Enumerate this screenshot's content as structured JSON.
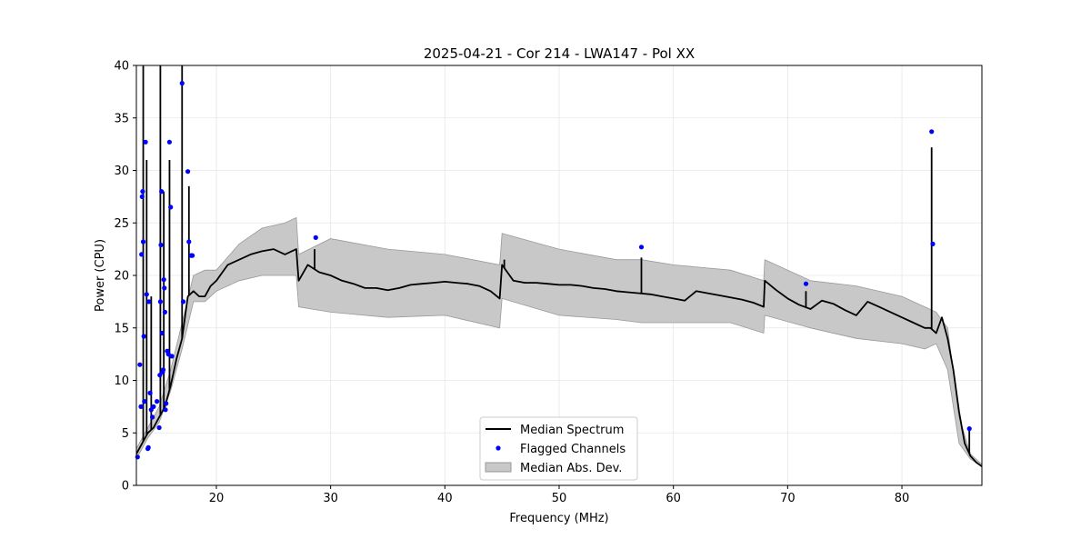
{
  "chart_data": {
    "type": "line",
    "title": "2025-04-21 - Cor 214 - LWA147 - Pol XX",
    "xlabel": "Frequency (MHz)",
    "ylabel": "Power (CPU)",
    "xlim": [
      13,
      87
    ],
    "ylim": [
      0,
      40
    ],
    "xticks": [
      20,
      30,
      40,
      50,
      60,
      70,
      80
    ],
    "yticks": [
      0,
      5,
      10,
      15,
      20,
      25,
      30,
      35,
      40
    ],
    "grid": true,
    "legend_position": "bottom-center",
    "legend": {
      "median": "Median Spectrum",
      "flagged": "Flagged Channels",
      "mad": "Median Abs. Dev."
    },
    "colors": {
      "median": "#000000",
      "flagged": "#0000ff",
      "mad_fill": "#c8c8c8",
      "mad_edge": "#999999",
      "grid": "#e6e6e6"
    },
    "median_spectrum": {
      "x": [
        13.0,
        13.5,
        14.0,
        14.5,
        15.0,
        15.5,
        16.0,
        16.5,
        17.0,
        17.5,
        18.0,
        18.5,
        19.0,
        19.5,
        20.0,
        21.0,
        22.0,
        23.0,
        24.0,
        25.0,
        26.0,
        27.0,
        27.2,
        28.0,
        29.0,
        30.0,
        31.0,
        32.0,
        33.0,
        34.0,
        35.0,
        36.0,
        37.0,
        38.0,
        39.0,
        40.0,
        41.0,
        42.0,
        43.0,
        44.0,
        44.8,
        45.0,
        46.0,
        47.0,
        48.0,
        49.0,
        50.0,
        51.0,
        52.0,
        53.0,
        54.0,
        55.0,
        56.0,
        57.0,
        58.0,
        59.0,
        60.0,
        61.0,
        62.0,
        63.0,
        64.0,
        65.0,
        66.0,
        67.0,
        67.9,
        68.0,
        69.0,
        70.0,
        71.0,
        72.0,
        73.0,
        74.0,
        75.0,
        76.0,
        77.0,
        78.0,
        79.0,
        80.0,
        81.0,
        82.0,
        82.5,
        83.0,
        83.5,
        84.0,
        84.5,
        85.0,
        85.5,
        86.0,
        86.5,
        87.0
      ],
      "y": [
        3.0,
        4.0,
        5.0,
        5.5,
        6.5,
        7.5,
        9.5,
        12.0,
        14.0,
        18.0,
        18.5,
        18.0,
        18.0,
        19.0,
        19.5,
        21.0,
        21.5,
        22.0,
        22.3,
        22.5,
        22.0,
        22.5,
        19.5,
        21.0,
        20.3,
        20.0,
        19.5,
        19.2,
        18.8,
        18.8,
        18.6,
        18.8,
        19.1,
        19.2,
        19.3,
        19.4,
        19.3,
        19.2,
        19.0,
        18.5,
        17.8,
        21.0,
        19.5,
        19.3,
        19.3,
        19.2,
        19.1,
        19.1,
        19.0,
        18.8,
        18.7,
        18.5,
        18.4,
        18.3,
        18.2,
        18.0,
        17.8,
        17.6,
        18.5,
        18.3,
        18.1,
        17.9,
        17.7,
        17.4,
        17.0,
        19.5,
        18.6,
        17.8,
        17.2,
        16.8,
        17.6,
        17.3,
        16.7,
        16.2,
        17.5,
        17.0,
        16.5,
        16.0,
        15.5,
        15.0,
        15.0,
        14.5,
        16.0,
        14.0,
        11.0,
        7.0,
        4.0,
        2.8,
        2.2,
        1.8
      ],
      "spikes": [
        {
          "x": 13.6,
          "y": 40
        },
        {
          "x": 13.9,
          "y": 31
        },
        {
          "x": 14.3,
          "y": 18
        },
        {
          "x": 15.1,
          "y": 40
        },
        {
          "x": 15.4,
          "y": 28
        },
        {
          "x": 15.9,
          "y": 31
        },
        {
          "x": 17.0,
          "y": 40
        },
        {
          "x": 17.6,
          "y": 28.5
        },
        {
          "x": 28.6,
          "y": 22.5
        },
        {
          "x": 45.2,
          "y": 21.5
        },
        {
          "x": 57.2,
          "y": 21.7
        },
        {
          "x": 71.6,
          "y": 18.5
        },
        {
          "x": 82.6,
          "y": 32.2
        },
        {
          "x": 85.9,
          "y": 5.3
        }
      ]
    },
    "mad_band": {
      "x": [
        13.0,
        14.0,
        15.0,
        16.0,
        17.0,
        18.0,
        19.0,
        20.0,
        22.0,
        24.0,
        26.0,
        27.0,
        27.2,
        30.0,
        35.0,
        40.0,
        44.8,
        45.0,
        50.0,
        55.0,
        57.2,
        60.0,
        65.0,
        67.9,
        68.0,
        72.0,
        76.0,
        80.0,
        82.0,
        83.0,
        84.0,
        85.0,
        86.0,
        87.0
      ],
      "lower": [
        2.5,
        4.5,
        6.0,
        9.0,
        13.0,
        17.5,
        17.5,
        18.5,
        19.5,
        20.0,
        20.0,
        20.0,
        17.0,
        16.5,
        16.0,
        16.2,
        15.0,
        17.8,
        16.2,
        15.8,
        15.5,
        15.5,
        15.5,
        14.5,
        16.2,
        15.0,
        14.0,
        13.5,
        13.0,
        13.5,
        11.0,
        4.0,
        2.5,
        1.8
      ],
      "upper": [
        3.5,
        5.5,
        7.5,
        11.0,
        15.5,
        20.0,
        20.5,
        20.5,
        23.0,
        24.5,
        25.0,
        25.5,
        22.0,
        23.5,
        22.5,
        22.0,
        21.0,
        24.0,
        22.5,
        21.5,
        21.5,
        21.0,
        20.5,
        19.5,
        21.5,
        19.5,
        19.0,
        18.0,
        17.0,
        16.5,
        15.0,
        6.5,
        3.0,
        2.0
      ]
    },
    "flagged_channels": {
      "x": [
        13.1,
        13.3,
        13.4,
        13.45,
        13.5,
        13.55,
        13.6,
        13.65,
        13.7,
        13.8,
        13.9,
        14.0,
        14.05,
        14.1,
        14.2,
        14.3,
        14.4,
        14.5,
        14.8,
        15.0,
        15.05,
        15.1,
        15.15,
        15.2,
        15.25,
        15.3,
        15.35,
        15.4,
        15.45,
        15.5,
        15.55,
        15.6,
        15.7,
        15.8,
        15.9,
        16.0,
        16.1,
        17.0,
        17.1,
        17.5,
        17.6,
        17.8,
        17.9,
        28.7,
        57.2,
        71.6,
        82.6,
        82.7,
        85.9
      ],
      "y": [
        2.7,
        11.5,
        7.5,
        22.0,
        27.5,
        28.0,
        23.2,
        14.2,
        8.0,
        32.7,
        18.2,
        3.5,
        3.6,
        17.5,
        8.8,
        7.2,
        6.5,
        7.5,
        8.0,
        5.5,
        10.5,
        17.5,
        22.9,
        28.0,
        14.5,
        10.8,
        11.0,
        19.6,
        18.8,
        16.5,
        7.2,
        7.8,
        12.8,
        12.5,
        32.7,
        26.5,
        12.3,
        38.3,
        17.5,
        29.9,
        23.2,
        21.9,
        21.9,
        23.6,
        22.7,
        19.2,
        33.7,
        23.0,
        5.4
      ]
    }
  }
}
